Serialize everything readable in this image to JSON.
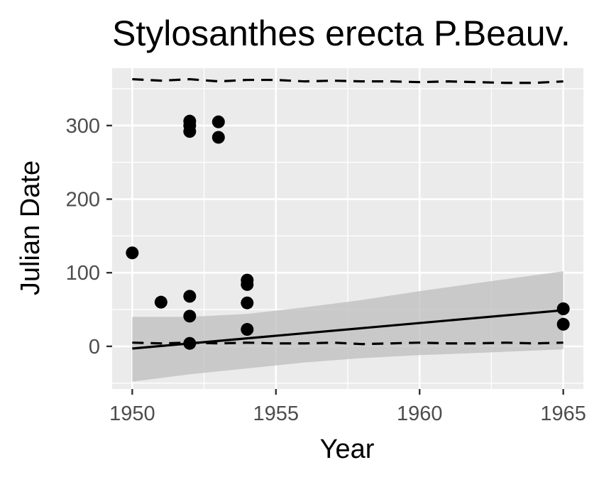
{
  "chart_data": {
    "type": "scatter",
    "title": "Stylosanthes erecta P.Beauv.",
    "xlabel": "Year",
    "ylabel": "Julian Date",
    "xlim": [
      1949.3,
      1965.7
    ],
    "ylim": [
      -58,
      378
    ],
    "x_ticks": [
      1950,
      1955,
      1960,
      1965
    ],
    "x_tick_labels": [
      "1950",
      "1955",
      "1960",
      "1965"
    ],
    "y_ticks": [
      0,
      100,
      200,
      300
    ],
    "y_tick_labels": [
      "0",
      "100",
      "200",
      "300"
    ],
    "grid": true,
    "legend": "none",
    "colors": {
      "panel": "#ebebeb",
      "grid": "#ffffff",
      "points": "#000000",
      "ribbon": "#bdbdbd",
      "line": "#000000"
    },
    "points": [
      {
        "x": 1950,
        "y": 127
      },
      {
        "x": 1951,
        "y": 60
      },
      {
        "x": 1952,
        "y": 306
      },
      {
        "x": 1952,
        "y": 300
      },
      {
        "x": 1952,
        "y": 292
      },
      {
        "x": 1952,
        "y": 68
      },
      {
        "x": 1952,
        "y": 41
      },
      {
        "x": 1952,
        "y": 4
      },
      {
        "x": 1953,
        "y": 305
      },
      {
        "x": 1953,
        "y": 284
      },
      {
        "x": 1954,
        "y": 90
      },
      {
        "x": 1954,
        "y": 84
      },
      {
        "x": 1954,
        "y": 59
      },
      {
        "x": 1954,
        "y": 23
      },
      {
        "x": 1965,
        "y": 51
      },
      {
        "x": 1965,
        "y": 30
      }
    ],
    "trend_line": {
      "x": [
        1950,
        1965
      ],
      "y": [
        -3,
        49
      ]
    },
    "confidence_band": {
      "x": [
        1950,
        1952,
        1954,
        1956,
        1958,
        1960,
        1962,
        1965
      ],
      "lower": [
        -48,
        -38,
        -30,
        -22,
        -16,
        -12,
        -9,
        -4
      ],
      "upper": [
        40,
        40,
        44,
        53,
        63,
        75,
        86,
        102
      ]
    },
    "upper_quantile_line": {
      "x": [
        1950,
        1951,
        1952,
        1953,
        1954,
        1955,
        1956,
        1957,
        1958,
        1959,
        1960,
        1961,
        1962,
        1963,
        1964,
        1965
      ],
      "y": [
        363,
        361,
        363,
        360,
        362,
        362,
        360,
        361,
        360,
        360,
        359,
        360,
        359,
        358,
        358,
        360
      ]
    },
    "lower_quantile_line": {
      "x": [
        1950,
        1951,
        1952,
        1953,
        1954,
        1955,
        1956,
        1957,
        1958,
        1959,
        1960,
        1961,
        1962,
        1963,
        1964,
        1965
      ],
      "y": [
        5,
        4,
        5,
        4,
        5,
        4,
        4,
        5,
        3,
        4,
        5,
        4,
        4,
        5,
        4,
        5
      ]
    }
  }
}
